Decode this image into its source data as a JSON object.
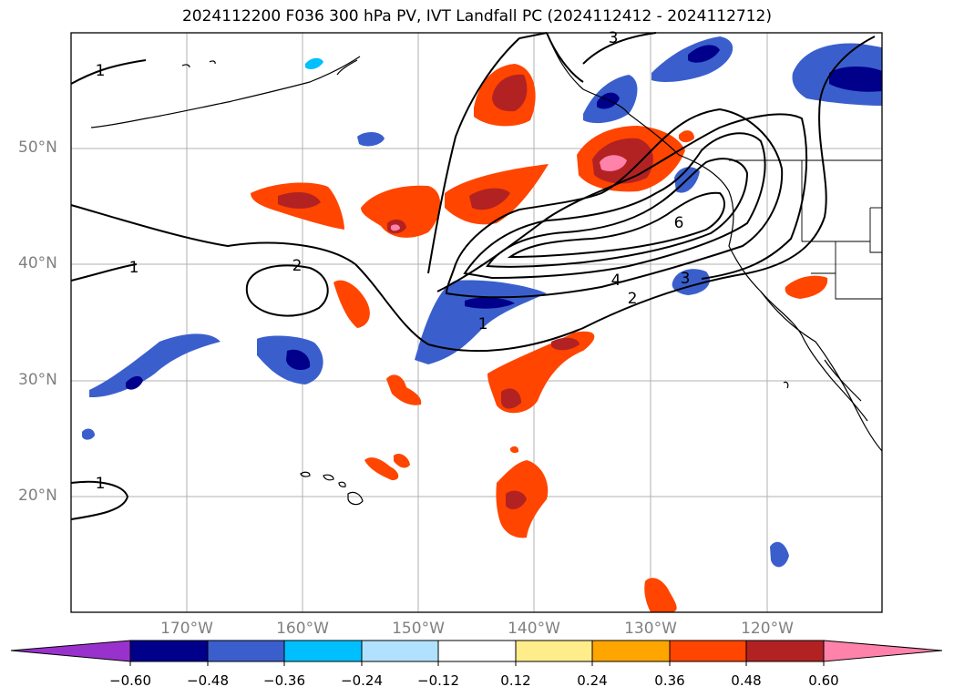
{
  "title": "2024112200 F036 300 hPa PV, IVT Landfall PC (2024112412 - 2024112712)",
  "lat_labels": [
    "50°N",
    "40°N",
    "30°N",
    "20°N"
  ],
  "lon_labels": [
    "170°W",
    "160°W",
    "150°W",
    "140°W",
    "130°W",
    "120°W"
  ],
  "contour_labels": [
    "1",
    "1",
    "2",
    "1",
    "1",
    "2",
    "3",
    "4",
    "6",
    "3"
  ],
  "colorbar": {
    "ticks": [
      "−0.60",
      "−0.48",
      "−0.36",
      "−0.24",
      "−0.12",
      "0.12",
      "0.24",
      "0.36",
      "0.48",
      "0.60"
    ],
    "colors": [
      "#9932cc",
      "#00008b",
      "#3a5fcd",
      "#00bfff",
      "#b0e2ff",
      "#ffffff",
      "#ffec8b",
      "#ffa500",
      "#ff4500",
      "#b22222",
      "#ff82ab"
    ]
  },
  "colors": {
    "coast": "#000000",
    "contour": "#000000",
    "grid": "#b0b0b0",
    "axis_label": "#808080"
  }
}
